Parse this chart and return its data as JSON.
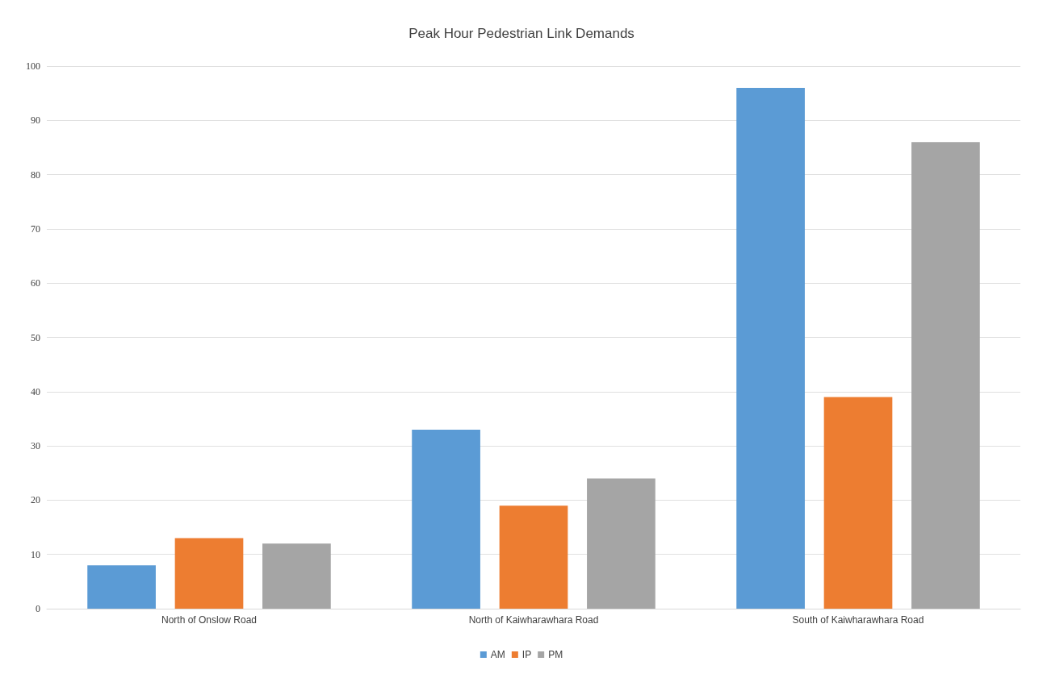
{
  "chart_data": {
    "type": "bar",
    "title": "Peak Hour Pedestrian Link Demands",
    "categories": [
      "North of Onslow Road",
      "North of Kaiwharawhara Road",
      "South of Kaiwharawhara Road"
    ],
    "series": [
      {
        "name": "AM",
        "color": "#5b9bd5",
        "values": [
          8,
          33,
          96
        ]
      },
      {
        "name": "IP",
        "color": "#ed7d31",
        "values": [
          13,
          19,
          39
        ]
      },
      {
        "name": "PM",
        "color": "#a5a5a5",
        "values": [
          12,
          24,
          86
        ]
      }
    ],
    "ylim": [
      0,
      100
    ],
    "yticks": [
      0,
      10,
      20,
      30,
      40,
      50,
      60,
      70,
      80,
      90,
      100
    ],
    "grid": "y",
    "legend": "bottom"
  }
}
